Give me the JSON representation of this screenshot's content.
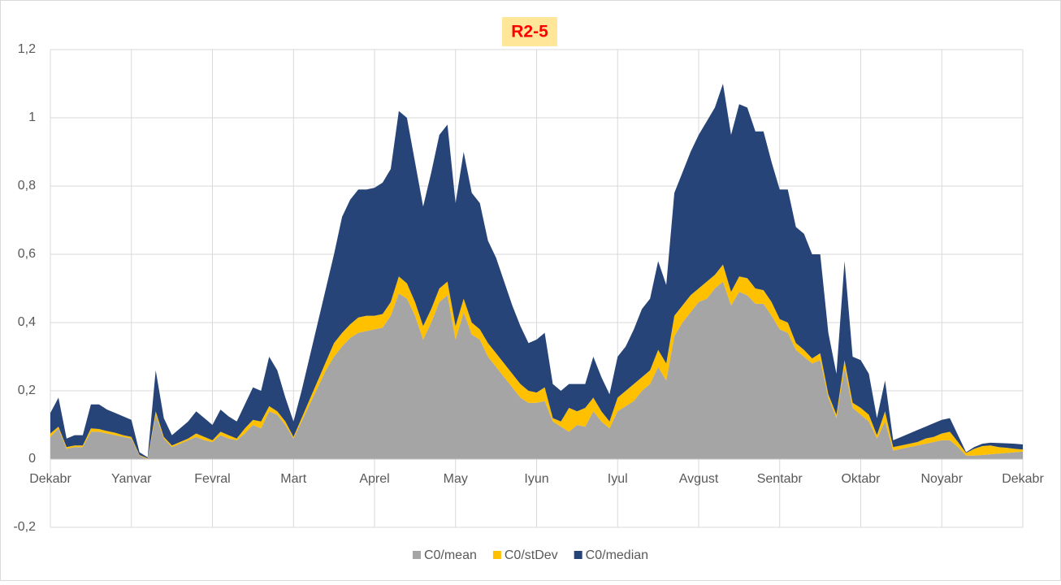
{
  "chart_data": {
    "type": "stacked-area",
    "title": "R2-5",
    "categories": [
      "Dekabr",
      null,
      null,
      null,
      null,
      null,
      null,
      null,
      null,
      null,
      "Yanvar",
      null,
      null,
      null,
      null,
      null,
      null,
      null,
      null,
      null,
      "Fevral",
      null,
      null,
      null,
      null,
      null,
      null,
      null,
      null,
      null,
      "Mart",
      null,
      null,
      null,
      null,
      null,
      null,
      null,
      null,
      null,
      "Aprel",
      null,
      null,
      null,
      null,
      null,
      null,
      null,
      null,
      null,
      "May",
      null,
      null,
      null,
      null,
      null,
      null,
      null,
      null,
      null,
      "Iyun",
      null,
      null,
      null,
      null,
      null,
      null,
      null,
      null,
      null,
      "Iyul",
      null,
      null,
      null,
      null,
      null,
      null,
      null,
      null,
      null,
      "Avgust",
      null,
      null,
      null,
      null,
      null,
      null,
      null,
      null,
      null,
      "Sentabr",
      null,
      null,
      null,
      null,
      null,
      null,
      null,
      null,
      null,
      "Oktabr",
      null,
      null,
      null,
      null,
      null,
      null,
      null,
      null,
      null,
      "Noyabr",
      null,
      null,
      null,
      null,
      null,
      null,
      null,
      null,
      null,
      "Dekabr"
    ],
    "series": [
      {
        "name": "C0/mean",
        "color": "#a5a5a5",
        "values": [
          0.065,
          0.09,
          0.03,
          0.035,
          0.035,
          0.08,
          0.08,
          0.075,
          0.07,
          0.065,
          0.06,
          0.01,
          0,
          0.13,
          0.06,
          0.035,
          0.045,
          0.055,
          0.065,
          0.055,
          0.05,
          0.07,
          0.06,
          0.055,
          0.075,
          0.1,
          0.09,
          0.14,
          0.13,
          0.1,
          0.06,
          0.11,
          0.16,
          0.21,
          0.26,
          0.3,
          0.33,
          0.355,
          0.37,
          0.375,
          0.38,
          0.385,
          0.42,
          0.485,
          0.47,
          0.42,
          0.35,
          0.4,
          0.46,
          0.48,
          0.35,
          0.43,
          0.365,
          0.35,
          0.3,
          0.27,
          0.24,
          0.21,
          0.18,
          0.165,
          0.165,
          0.17,
          0.11,
          0.095,
          0.08,
          0.1,
          0.095,
          0.14,
          0.11,
          0.09,
          0.14,
          0.155,
          0.17,
          0.2,
          0.22,
          0.27,
          0.23,
          0.36,
          0.4,
          0.43,
          0.46,
          0.47,
          0.5,
          0.52,
          0.45,
          0.49,
          0.48,
          0.455,
          0.455,
          0.42,
          0.38,
          0.37,
          0.32,
          0.3,
          0.28,
          0.29,
          0.18,
          0.12,
          0.27,
          0.15,
          0.13,
          0.11,
          0.06,
          0.11,
          0.025,
          0.03,
          0.035,
          0.04,
          0.045,
          0.05,
          0.055,
          0.055,
          0.035,
          0.01,
          0.01,
          0.012,
          0.014,
          0.016,
          0.018,
          0.02,
          0.022
        ]
      },
      {
        "name": "C0/stDev",
        "color": "#ffc000",
        "values": [
          0.01,
          0.005,
          0.005,
          0.005,
          0.005,
          0.01,
          0.008,
          0.007,
          0.007,
          0.005,
          0.005,
          0.002,
          0.002,
          0.01,
          0.005,
          0.005,
          0.005,
          0.005,
          0.01,
          0.01,
          0.005,
          0.01,
          0.01,
          0.005,
          0.015,
          0.015,
          0.02,
          0.015,
          0.01,
          0.01,
          0.005,
          0.01,
          0.015,
          0.02,
          0.025,
          0.04,
          0.04,
          0.04,
          0.045,
          0.045,
          0.04,
          0.04,
          0.04,
          0.05,
          0.045,
          0.04,
          0.04,
          0.04,
          0.04,
          0.04,
          0.04,
          0.04,
          0.035,
          0.03,
          0.04,
          0.04,
          0.04,
          0.04,
          0.04,
          0.035,
          0.03,
          0.04,
          0.01,
          0.015,
          0.07,
          0.04,
          0.055,
          0.04,
          0.03,
          0.02,
          0.04,
          0.045,
          0.05,
          0.04,
          0.04,
          0.05,
          0.05,
          0.06,
          0.05,
          0.05,
          0.04,
          0.05,
          0.04,
          0.05,
          0.04,
          0.045,
          0.05,
          0.045,
          0.04,
          0.04,
          0.03,
          0.03,
          0.02,
          0.02,
          0.015,
          0.02,
          0.01,
          0.01,
          0.02,
          0.015,
          0.02,
          0.02,
          0.01,
          0.03,
          0.01,
          0.01,
          0.01,
          0.01,
          0.015,
          0.015,
          0.02,
          0.025,
          0.015,
          0.008,
          0.02,
          0.026,
          0.026,
          0.019,
          0.015,
          0.01,
          0.006
        ]
      },
      {
        "name": "C0/median",
        "color": "#264478",
        "values": [
          0.06,
          0.085,
          0.025,
          0.03,
          0.03,
          0.07,
          0.072,
          0.063,
          0.058,
          0.055,
          0.05,
          0.008,
          0.003,
          0.12,
          0.055,
          0.03,
          0.04,
          0.05,
          0.065,
          0.055,
          0.045,
          0.065,
          0.055,
          0.05,
          0.07,
          0.095,
          0.09,
          0.145,
          0.12,
          0.07,
          0.045,
          0.08,
          0.125,
          0.17,
          0.215,
          0.26,
          0.34,
          0.365,
          0.375,
          0.37,
          0.375,
          0.385,
          0.39,
          0.485,
          0.485,
          0.41,
          0.35,
          0.4,
          0.45,
          0.46,
          0.36,
          0.43,
          0.38,
          0.37,
          0.3,
          0.28,
          0.24,
          0.2,
          0.17,
          0.14,
          0.155,
          0.16,
          0.1,
          0.09,
          0.07,
          0.08,
          0.07,
          0.12,
          0.1,
          0.08,
          0.12,
          0.13,
          0.16,
          0.2,
          0.21,
          0.26,
          0.23,
          0.36,
          0.39,
          0.42,
          0.45,
          0.47,
          0.49,
          0.53,
          0.46,
          0.505,
          0.5,
          0.46,
          0.465,
          0.41,
          0.38,
          0.39,
          0.34,
          0.34,
          0.305,
          0.29,
          0.18,
          0.12,
          0.29,
          0.135,
          0.14,
          0.12,
          0.05,
          0.09,
          0.02,
          0.025,
          0.03,
          0.035,
          0.035,
          0.04,
          0.04,
          0.04,
          0.02,
          0.002,
          0.005,
          0.007,
          0.008,
          0.012,
          0.013,
          0.015,
          0.015
        ]
      }
    ],
    "ylim": [
      -0.2,
      1.2
    ],
    "yticks": [
      {
        "value": -0.2,
        "label": "-0,2"
      },
      0,
      {
        "value": 0.2,
        "label": "0,2"
      },
      {
        "value": 0.4,
        "label": "0,4"
      },
      {
        "value": 0.6,
        "label": "0,6"
      },
      {
        "value": 0.8,
        "label": "0,8"
      },
      1,
      {
        "value": 1.2,
        "label": "1,2"
      }
    ],
    "grid": true,
    "legend": "bottom"
  }
}
